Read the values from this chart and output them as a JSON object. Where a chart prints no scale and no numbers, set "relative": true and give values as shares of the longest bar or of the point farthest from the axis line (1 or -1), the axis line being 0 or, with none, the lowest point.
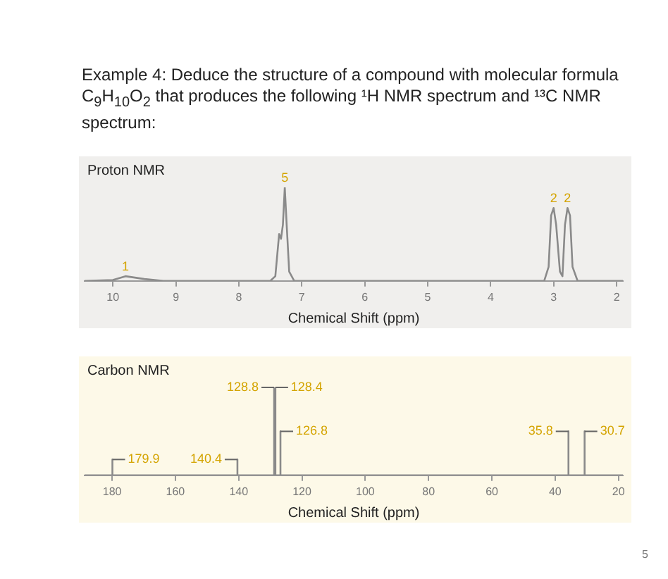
{
  "chart_data": [
    {
      "type": "line",
      "title": "Example 4: Deduce the structure of a compound with molecular formula C$_{9}$H$_{10}$O$_{2}$ that produces the following ¹H NMR spectrum and ¹³C NMR spectrum:",
      "subtitle": "Proton NMR",
      "xlabel": "Chemical Shift (ppm)",
      "relative": true,
      "xlim": [
        10.45,
        1.9
      ],
      "xticks": [
        10,
        9,
        8,
        7,
        6,
        5,
        4,
        3,
        2
      ],
      "grid": false,
      "legend": false,
      "marker": "none",
      "tick_labels": "x",
      "series": [
        {
          "color": "#8a8a8a",
          "x": [
            10.45,
            10.0,
            9.8,
            9.5,
            9.2,
            7.5,
            7.42,
            7.36,
            7.33,
            7.3,
            7.27,
            7.24,
            7.2,
            7.12,
            3.15,
            3.08,
            3.04,
            3.0,
            2.96,
            2.9,
            2.86,
            2.82,
            2.78,
            2.74,
            2.7,
            2.62,
            1.9
          ],
          "values": [
            0,
            0.01,
            0.05,
            0.02,
            0,
            0,
            0.05,
            0.5,
            0.45,
            0.6,
            1,
            0.6,
            0.1,
            0,
            0,
            0.15,
            0.7,
            0.78,
            0.6,
            0.1,
            0.05,
            0.6,
            0.78,
            0.7,
            0.15,
            0,
            0
          ]
        }
      ],
      "annotations": [
        {
          "text": "1",
          "x": 9.8,
          "y": 0.05
        },
        {
          "text": "5",
          "x": 7.27,
          "y": 1
        },
        {
          "text": "2",
          "x": 3.0,
          "y": 0.78
        },
        {
          "text": "2",
          "x": 2.78,
          "y": 0.78
        }
      ]
    },
    {
      "type": "line",
      "title": "Carbon NMR",
      "xlabel": "Chemical Shift (ppm)",
      "relative": true,
      "xlim": [
        188.7,
        18.6
      ],
      "xticks": [
        180,
        160,
        140,
        120,
        100,
        80,
        60,
        40,
        20
      ],
      "grid": false,
      "legend": false,
      "marker": "none",
      "tick_labels": "x",
      "series": [
        {
          "color": "#8a8a8a",
          "x": [
            188.7,
            179.9,
            179.9,
            179.9,
            140.4,
            140.4,
            140.4,
            128.8,
            128.8,
            128.8,
            128.4,
            128.4,
            128.4,
            126.8,
            126.8,
            126.8,
            35.8,
            35.8,
            35.8,
            30.7,
            30.7,
            30.7,
            18.6
          ],
          "values": [
            0,
            0,
            0.18,
            0,
            0,
            0.18,
            0,
            0,
            1,
            0,
            0,
            1,
            0,
            0,
            0.5,
            0,
            0,
            0.5,
            0,
            0,
            0.5,
            0,
            0
          ]
        }
      ],
      "annotations": [
        {
          "text": "179.9",
          "x": 179.9,
          "y": 0.18
        },
        {
          "text": "140.4",
          "x": 140.4,
          "y": 0.18
        },
        {
          "text": "128.8",
          "x": 128.8,
          "y": 1
        },
        {
          "text": "128.4",
          "x": 128.4,
          "y": 1
        },
        {
          "text": "126.8",
          "x": 126.8,
          "y": 0.5
        },
        {
          "text": "35.8",
          "x": 35.8,
          "y": 0.5
        },
        {
          "text": "30.7",
          "x": 30.7,
          "y": 0.5
        },
        "5"
      ]
    }
  ]
}
